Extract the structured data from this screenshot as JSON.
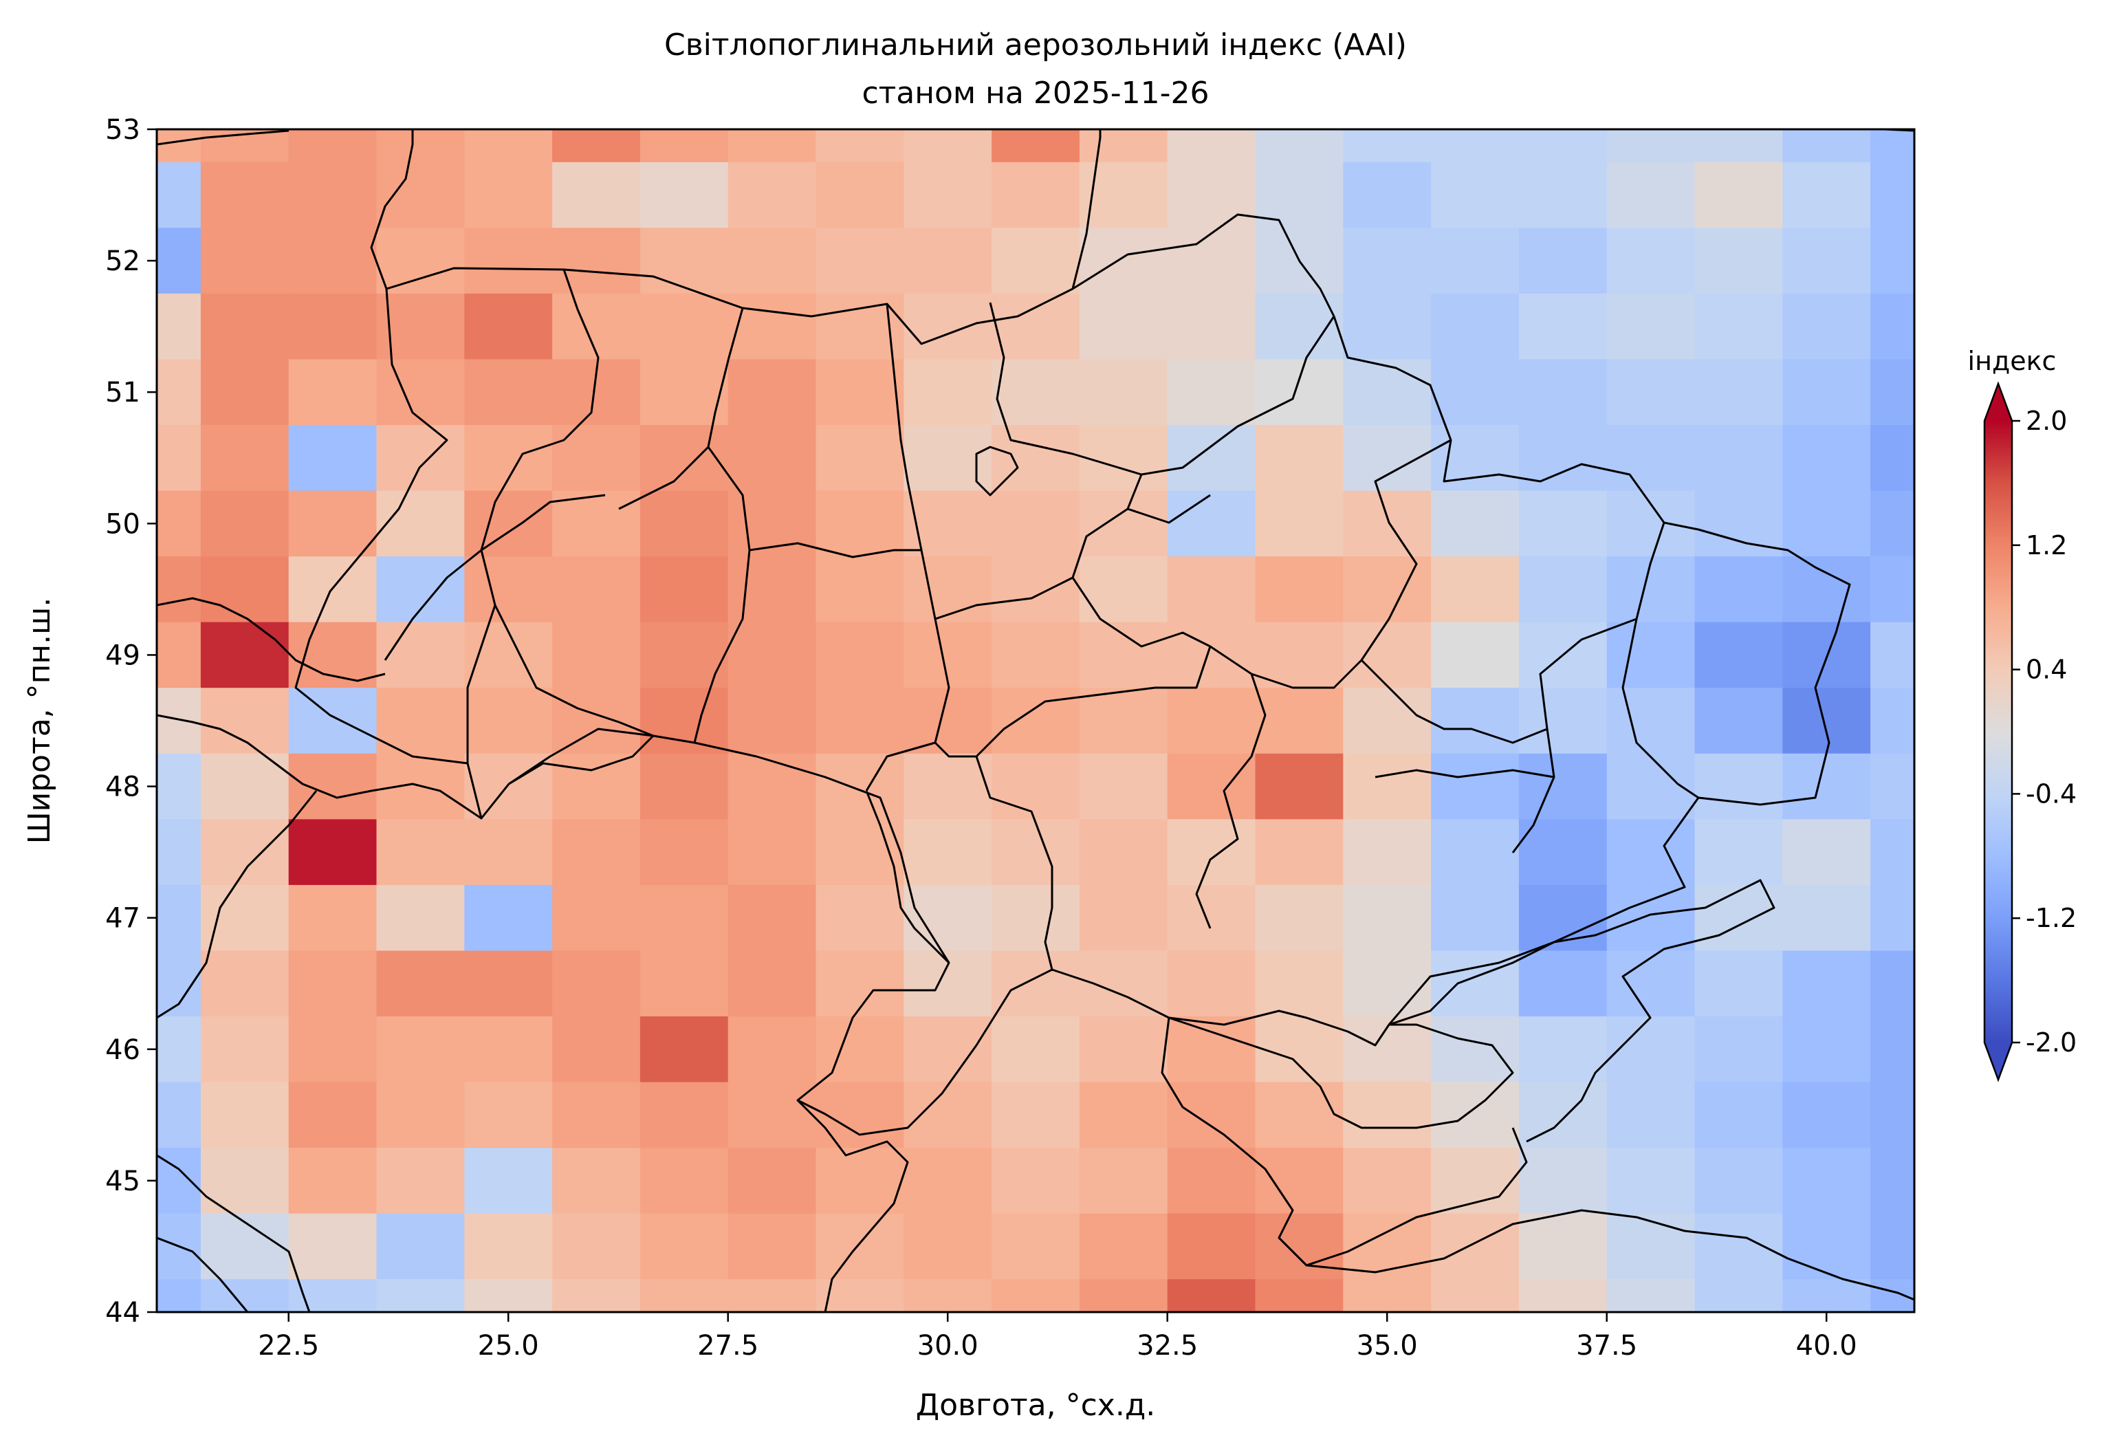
{
  "chart_data": {
    "type": "heatmap",
    "title": "Світлопоглинальний аерозольний індекс (AAI)",
    "subtitle": "станом на 2025-11-26",
    "xlabel": "Довгота, °сх.д.",
    "ylabel": "Широта, °пн.ш.",
    "xlim": [
      21.0,
      41.0
    ],
    "ylim": [
      44.0,
      53.0
    ],
    "xticks": [
      22.5,
      25.0,
      27.5,
      30.0,
      32.5,
      35.0,
      37.5,
      40.0
    ],
    "xtick_labels": [
      "22.5",
      "25.0",
      "27.5",
      "30.0",
      "32.5",
      "35.0",
      "37.5",
      "40.0"
    ],
    "yticks": [
      44,
      45,
      46,
      47,
      48,
      49,
      50,
      51,
      52,
      53
    ],
    "ytick_labels": [
      "44",
      "45",
      "46",
      "47",
      "48",
      "49",
      "50",
      "51",
      "52",
      "53"
    ],
    "colormap": "coolwarm",
    "grid": false,
    "colorbar": {
      "label": "індекс",
      "vmin": -2.0,
      "vmax": 2.0,
      "extend": "both",
      "ticks": [
        2.0,
        1.2,
        0.4,
        -0.4,
        -1.2,
        -2.0
      ],
      "tick_labels": [
        "2.0",
        "1.2",
        "0.4",
        "-0.4",
        "-1.2",
        "-2.0"
      ],
      "colors": [
        "#3b4cc0",
        "#5977e3",
        "#7b9ff9",
        "#9ebeff",
        "#c0d4f5",
        "#dddcdc",
        "#f2cbb7",
        "#f7ac8e",
        "#ee8468",
        "#d65244",
        "#b40426"
      ]
    },
    "grid_lon": [
      21,
      22,
      23,
      24,
      25,
      26,
      27,
      28,
      29,
      30,
      31,
      32,
      33,
      34,
      35,
      36,
      37,
      38,
      39,
      40,
      41
    ],
    "grid_lat": [
      53,
      52.5,
      52,
      51.5,
      51,
      50.5,
      50,
      49.5,
      49,
      48.5,
      48,
      47.5,
      47,
      46.5,
      46,
      45.5,
      45,
      44.5,
      44
    ],
    "values": [
      [
        0.8,
        0.9,
        1.0,
        0.9,
        0.8,
        1.2,
        0.9,
        0.8,
        0.6,
        0.5,
        1.2,
        0.6,
        0.2,
        -0.2,
        -0.4,
        -0.4,
        -0.4,
        -0.3,
        -0.3,
        -0.6,
        -0.8
      ],
      [
        -0.6,
        1.0,
        1.0,
        0.9,
        0.8,
        0.3,
        0.2,
        0.6,
        0.7,
        0.5,
        0.6,
        0.4,
        0.2,
        -0.2,
        -0.6,
        -0.4,
        -0.4,
        -0.2,
        0.1,
        -0.4,
        -0.8
      ],
      [
        -1.0,
        1.0,
        1.0,
        0.8,
        0.9,
        0.9,
        0.7,
        0.7,
        0.6,
        0.6,
        0.4,
        0.2,
        0.2,
        -0.2,
        -0.5,
        -0.5,
        -0.6,
        -0.4,
        -0.3,
        -0.5,
        -0.8
      ],
      [
        0.3,
        1.1,
        1.1,
        1.0,
        1.3,
        0.8,
        0.8,
        0.8,
        0.7,
        0.5,
        0.5,
        0.2,
        0.2,
        -0.3,
        -0.5,
        -0.6,
        -0.4,
        -0.3,
        -0.4,
        -0.6,
        -0.9
      ],
      [
        0.5,
        1.1,
        0.8,
        0.9,
        1.0,
        1.0,
        0.8,
        1.0,
        0.8,
        0.4,
        0.3,
        0.3,
        0.1,
        0.0,
        -0.3,
        -0.6,
        -0.6,
        -0.5,
        -0.5,
        -0.7,
        -1.0
      ],
      [
        0.6,
        1.0,
        -0.8,
        0.6,
        0.8,
        0.9,
        1.0,
        1.0,
        0.7,
        0.3,
        0.5,
        0.4,
        -0.3,
        0.4,
        -0.2,
        -0.5,
        -0.6,
        -0.6,
        -0.6,
        -0.8,
        -1.1
      ],
      [
        0.9,
        1.1,
        0.9,
        0.4,
        1.0,
        0.8,
        1.1,
        1.0,
        0.8,
        0.6,
        0.6,
        0.5,
        -0.5,
        0.4,
        0.5,
        -0.2,
        -0.4,
        -0.5,
        -0.6,
        -0.8,
        -1.0
      ],
      [
        1.1,
        1.2,
        0.4,
        -0.6,
        0.9,
        0.9,
        1.2,
        1.0,
        0.8,
        0.7,
        0.6,
        0.4,
        0.6,
        0.8,
        0.7,
        0.4,
        -0.5,
        -0.7,
        -0.9,
        -1.0,
        -0.9
      ],
      [
        0.9,
        1.8,
        1.0,
        0.6,
        0.7,
        0.9,
        1.1,
        1.0,
        0.9,
        0.8,
        0.7,
        0.6,
        0.6,
        0.6,
        0.5,
        0.0,
        -0.4,
        -0.8,
        -1.2,
        -1.3,
        -0.6
      ],
      [
        0.2,
        0.6,
        -0.6,
        0.8,
        0.8,
        0.9,
        1.2,
        1.0,
        0.9,
        0.9,
        0.8,
        0.7,
        0.8,
        0.8,
        0.3,
        -0.6,
        -0.5,
        -0.6,
        -1.0,
        -1.4,
        -0.7
      ],
      [
        -0.4,
        0.3,
        1.0,
        0.8,
        0.6,
        0.8,
        1.1,
        0.9,
        0.7,
        0.5,
        0.6,
        0.5,
        0.9,
        1.4,
        0.4,
        -0.8,
        -1.0,
        -0.6,
        -0.5,
        -0.7,
        -0.6
      ],
      [
        -0.5,
        0.5,
        1.9,
        0.7,
        0.7,
        0.9,
        1.0,
        0.9,
        0.7,
        0.4,
        0.5,
        0.6,
        0.4,
        0.6,
        0.2,
        -0.6,
        -1.1,
        -0.8,
        -0.4,
        -0.2,
        -0.7
      ],
      [
        -0.6,
        0.4,
        0.8,
        0.3,
        -0.8,
        0.9,
        0.9,
        1.0,
        0.6,
        0.2,
        0.3,
        0.6,
        0.5,
        0.3,
        0.1,
        -0.6,
        -1.2,
        -0.8,
        -0.3,
        -0.3,
        -0.7
      ],
      [
        -0.6,
        0.6,
        0.9,
        1.1,
        1.1,
        1.0,
        0.9,
        1.0,
        0.7,
        0.3,
        0.5,
        0.5,
        0.6,
        0.4,
        0.1,
        -0.4,
        -0.9,
        -0.7,
        -0.5,
        -0.8,
        -1.0
      ],
      [
        -0.4,
        0.5,
        0.9,
        0.8,
        0.8,
        1.0,
        1.5,
        0.9,
        0.8,
        0.6,
        0.4,
        0.6,
        0.8,
        0.4,
        0.2,
        -0.2,
        -0.4,
        -0.5,
        -0.6,
        -0.8,
        -1.0
      ],
      [
        -0.6,
        0.4,
        1.0,
        0.8,
        0.7,
        0.9,
        1.0,
        0.9,
        0.9,
        0.7,
        0.5,
        0.8,
        0.9,
        0.7,
        0.4,
        0.1,
        -0.3,
        -0.5,
        -0.7,
        -0.9,
        -1.0
      ],
      [
        -0.8,
        0.3,
        0.8,
        0.6,
        -0.4,
        0.7,
        0.9,
        1.0,
        0.8,
        0.8,
        0.6,
        0.7,
        1.0,
        0.9,
        0.6,
        0.3,
        -0.2,
        -0.4,
        -0.6,
        -0.8,
        -1.0
      ],
      [
        -0.7,
        -0.2,
        0.2,
        -0.6,
        0.4,
        0.6,
        0.8,
        0.9,
        0.7,
        0.8,
        0.7,
        0.9,
        1.2,
        1.1,
        0.7,
        0.5,
        0.1,
        -0.3,
        -0.5,
        -0.8,
        -1.0
      ],
      [
        -0.8,
        -0.6,
        -0.5,
        -0.4,
        0.2,
        0.5,
        0.7,
        0.7,
        0.6,
        0.7,
        0.8,
        1.0,
        1.5,
        1.2,
        0.7,
        0.5,
        0.2,
        -0.2,
        -0.5,
        -0.7,
        -0.9
      ]
    ]
  }
}
